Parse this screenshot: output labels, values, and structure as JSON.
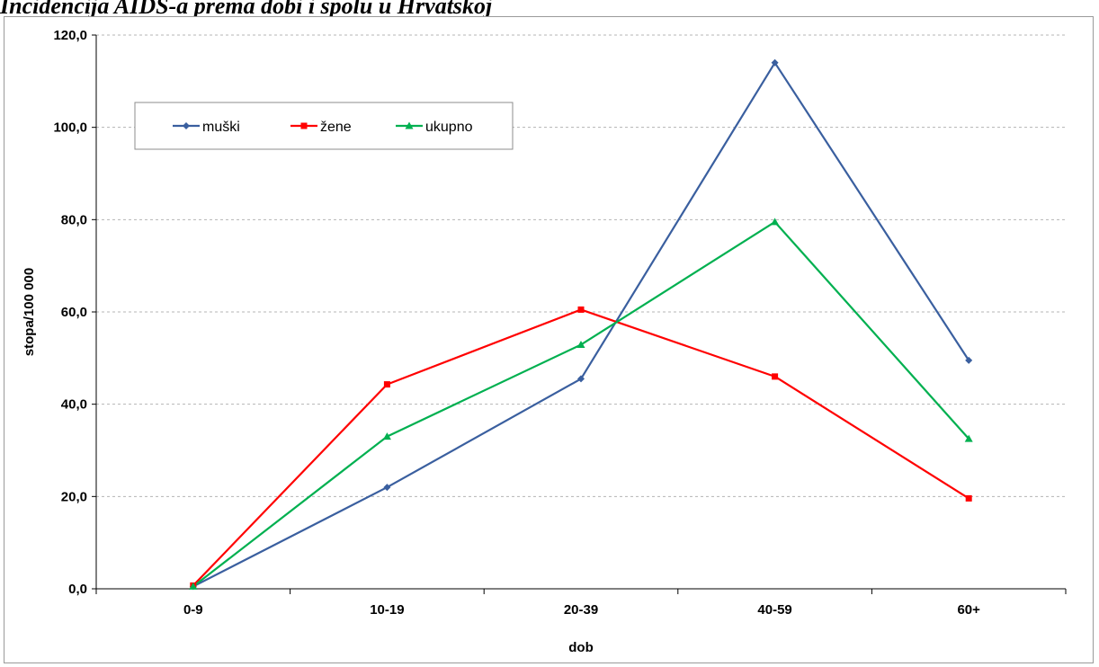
{
  "page_title": "Incidencija AIDS-a prema dobi i spolu u Hrvatskoj",
  "chart_data": {
    "type": "line",
    "title": "",
    "xlabel": "dob",
    "ylabel": "stopa/100 000",
    "categories": [
      "0-9",
      "10-19",
      "20-39",
      "40-59",
      "60+"
    ],
    "ylim": [
      0,
      120
    ],
    "yticks": [
      "0,0",
      "20,0",
      "40,0",
      "60,0",
      "80,0",
      "100,0",
      "120,0"
    ],
    "ytick_values": [
      0,
      20,
      40,
      60,
      80,
      100,
      120
    ],
    "grid": "horizontal dashed",
    "legend_position": "top-left",
    "series": [
      {
        "name": "muški",
        "color": "#3A5F9F",
        "marker": "diamond",
        "values": [
          0.5,
          22.0,
          45.5,
          114.0,
          49.5
        ]
      },
      {
        "name": "žene",
        "color": "#FF0000",
        "marker": "square",
        "values": [
          0.7,
          44.3,
          60.5,
          46.0,
          19.6
        ]
      },
      {
        "name": "ukupno",
        "color": "#00B050",
        "marker": "triangle",
        "values": [
          0.5,
          33.0,
          52.9,
          79.5,
          32.5
        ]
      }
    ]
  }
}
